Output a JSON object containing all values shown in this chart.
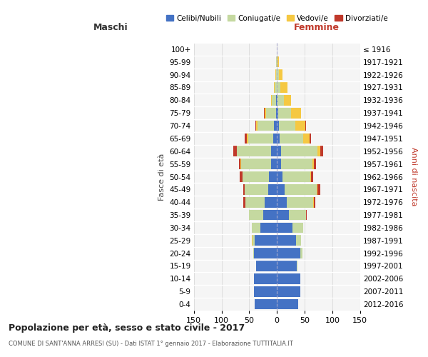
{
  "age_groups": [
    "0-4",
    "5-9",
    "10-14",
    "15-19",
    "20-24",
    "25-29",
    "30-34",
    "35-39",
    "40-44",
    "45-49",
    "50-54",
    "55-59",
    "60-64",
    "65-69",
    "70-74",
    "75-79",
    "80-84",
    "85-89",
    "90-94",
    "95-99",
    "100+"
  ],
  "birth_years": [
    "2012-2016",
    "2007-2011",
    "2002-2006",
    "1997-2001",
    "1992-1996",
    "1987-1991",
    "1982-1986",
    "1977-1981",
    "1972-1976",
    "1967-1971",
    "1962-1966",
    "1957-1961",
    "1952-1956",
    "1947-1951",
    "1942-1946",
    "1937-1941",
    "1932-1936",
    "1927-1931",
    "1922-1926",
    "1917-1921",
    "≤ 1916"
  ],
  "maschi": {
    "celibi": [
      40,
      42,
      42,
      38,
      42,
      40,
      30,
      25,
      22,
      16,
      14,
      10,
      10,
      7,
      5,
      2,
      1,
      0,
      0,
      0,
      0
    ],
    "coniugati": [
      0,
      0,
      0,
      0,
      1,
      4,
      15,
      25,
      35,
      42,
      48,
      55,
      62,
      45,
      30,
      18,
      8,
      4,
      2,
      1,
      0
    ],
    "vedovi": [
      0,
      0,
      0,
      0,
      0,
      1,
      0,
      0,
      0,
      0,
      0,
      1,
      1,
      2,
      3,
      2,
      2,
      2,
      1,
      0,
      0
    ],
    "divorziati": [
      0,
      0,
      0,
      0,
      0,
      0,
      0,
      1,
      4,
      3,
      5,
      3,
      6,
      4,
      1,
      2,
      0,
      0,
      0,
      0,
      0
    ]
  },
  "femmine": {
    "nubili": [
      38,
      42,
      42,
      36,
      42,
      35,
      28,
      22,
      18,
      14,
      10,
      8,
      8,
      5,
      3,
      2,
      1,
      0,
      0,
      0,
      0
    ],
    "coniugate": [
      0,
      0,
      0,
      1,
      4,
      8,
      20,
      30,
      48,
      58,
      50,
      56,
      65,
      42,
      30,
      24,
      11,
      6,
      3,
      1,
      0
    ],
    "vedove": [
      0,
      0,
      0,
      0,
      0,
      0,
      0,
      0,
      1,
      1,
      2,
      3,
      5,
      12,
      18,
      18,
      13,
      13,
      7,
      2,
      0
    ],
    "divorziate": [
      0,
      0,
      0,
      0,
      0,
      0,
      0,
      2,
      2,
      5,
      4,
      3,
      5,
      3,
      1,
      0,
      0,
      0,
      0,
      0,
      0
    ]
  },
  "colors": {
    "celibi": "#4472c4",
    "coniugati": "#c5d9a0",
    "vedovi": "#f5c842",
    "divorziati": "#c0392b"
  },
  "title": "Popolazione per età, sesso e stato civile - 2017",
  "subtitle": "COMUNE DI SANT'ANNA ARRESI (SU) - Dati ISTAT 1° gennaio 2017 - Elaborazione TUTTITALIA.IT",
  "xlabel_left": "Maschi",
  "xlabel_right": "Femmine",
  "ylabel_left": "Fasce di età",
  "ylabel_right": "Anni di nascita",
  "xlim": 150,
  "bg_color": "#ffffff",
  "plot_bg_color": "#f5f5f5",
  "grid_color": "#dddddd",
  "legend_labels": [
    "Celibi/Nubili",
    "Coniugati/e",
    "Vedovi/e",
    "Divorziati/e"
  ]
}
